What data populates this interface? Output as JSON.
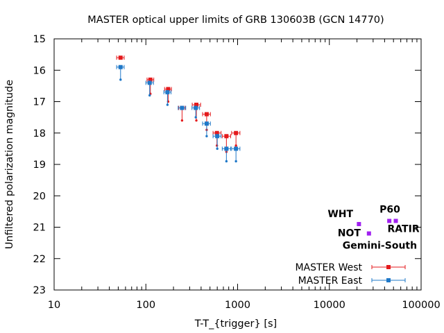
{
  "chart_data": {
    "type": "scatter",
    "title": "MASTER optical upper limits of GRB 130603B (GCN  14770)",
    "xlabel": "T-T_{trigger} [s]",
    "ylabel": "Unfiltered polarization magnitude",
    "xscale": "log",
    "xlim": [
      10,
      100000
    ],
    "ylim": [
      23,
      15
    ],
    "y_inverted": true,
    "x_tick_labels": [
      "10",
      "100",
      "1000",
      "10000",
      "100000"
    ],
    "y_tick_labels": [
      "15",
      "16",
      "17",
      "18",
      "19",
      "20",
      "21",
      "22",
      "23"
    ],
    "grid": false,
    "legend_position": "bottom-right",
    "series": [
      {
        "name": "MASTER West",
        "color": "#e41a1c",
        "points": [
          {
            "x": 53,
            "xlo": 48,
            "xhi": 58,
            "y": 15.6,
            "ylo": 15.6
          },
          {
            "x": 112,
            "xlo": 103,
            "xhi": 122,
            "y": 16.3,
            "ylo": 16.75
          },
          {
            "x": 175,
            "xlo": 160,
            "xhi": 190,
            "y": 16.6,
            "ylo": 17.0
          },
          {
            "x": 248,
            "xlo": 228,
            "xhi": 268,
            "y": 17.2,
            "ylo": 17.6
          },
          {
            "x": 355,
            "xlo": 320,
            "xhi": 395,
            "y": 17.1,
            "ylo": 17.6
          },
          {
            "x": 460,
            "xlo": 415,
            "xhi": 505,
            "y": 17.4,
            "ylo": 17.9
          },
          {
            "x": 595,
            "xlo": 540,
            "xhi": 660,
            "y": 18.0,
            "ylo": 18.4
          },
          {
            "x": 755,
            "xlo": 680,
            "xhi": 840,
            "y": 18.1,
            "ylo": 18.6
          },
          {
            "x": 960,
            "xlo": 860,
            "xhi": 1060,
            "y": 18.0,
            "ylo": 18.4
          }
        ]
      },
      {
        "name": "MASTER East",
        "color": "#1f78c8",
        "points": [
          {
            "x": 53,
            "xlo": 48,
            "xhi": 58,
            "y": 15.9,
            "ylo": 16.3
          },
          {
            "x": 110,
            "xlo": 100,
            "xhi": 121,
            "y": 16.4,
            "ylo": 16.8
          },
          {
            "x": 172,
            "xlo": 157,
            "xhi": 188,
            "y": 16.7,
            "ylo": 17.1
          },
          {
            "x": 248,
            "xlo": 225,
            "xhi": 272,
            "y": 17.2,
            "ylo": 17.2
          },
          {
            "x": 350,
            "xlo": 318,
            "xhi": 385,
            "y": 17.2,
            "ylo": 17.5
          },
          {
            "x": 460,
            "xlo": 415,
            "xhi": 505,
            "y": 17.7,
            "ylo": 18.1
          },
          {
            "x": 600,
            "xlo": 540,
            "xhi": 660,
            "y": 18.1,
            "ylo": 18.5
          },
          {
            "x": 755,
            "xlo": 680,
            "xhi": 840,
            "y": 18.5,
            "ylo": 18.9
          },
          {
            "x": 960,
            "xlo": 860,
            "xhi": 1060,
            "y": 18.5,
            "ylo": 18.9
          }
        ]
      }
    ],
    "other_observations": {
      "color": "#a020f0",
      "points": [
        {
          "label": "WHT",
          "x": 21000,
          "y": 20.9
        },
        {
          "label": "NOT",
          "x": 27000,
          "y": 21.2
        },
        {
          "label": "P60",
          "x": 45000,
          "y": 20.8
        },
        {
          "label": "RATIR",
          "x": 53000,
          "y": 20.8
        },
        {
          "label": "Gemini-South",
          "x": 27000,
          "y": 21.2
        }
      ]
    }
  }
}
